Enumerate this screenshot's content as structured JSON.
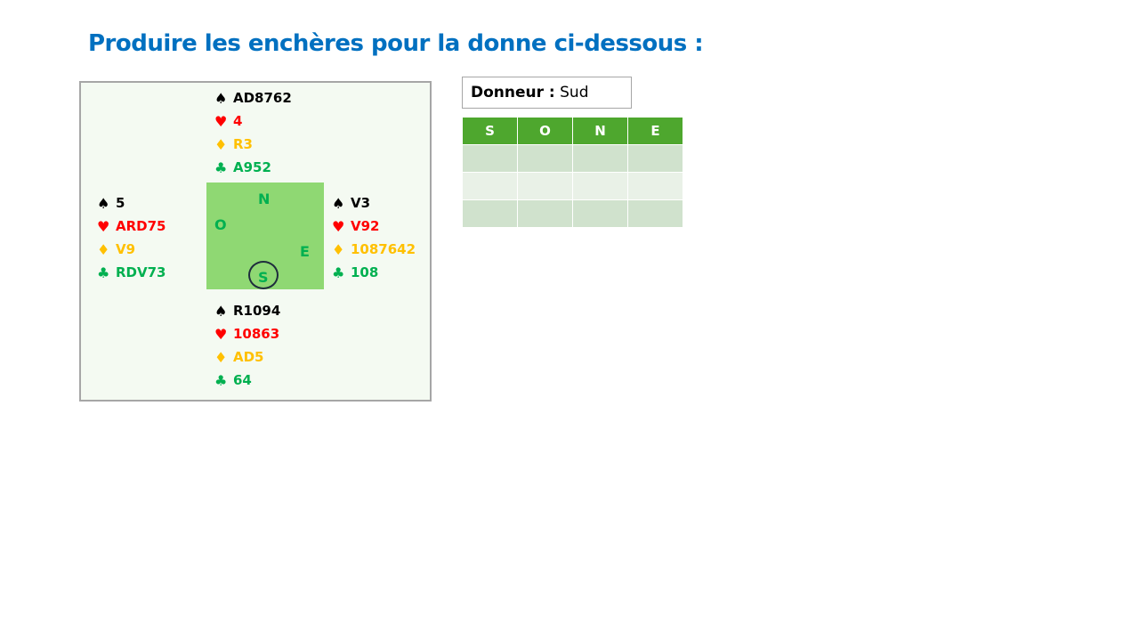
{
  "title": "Produire les enchères pour la donne ci-dessous :",
  "suit_colors": {
    "spade": "#000000",
    "heart": "#ff0000",
    "diamond": "#ffc000",
    "club": "#00b050"
  },
  "suit_symbols": {
    "spade": "♠",
    "heart": "♥",
    "diamond": "♦",
    "club": "♣"
  },
  "hands": {
    "north": {
      "spades": "AD8762",
      "hearts": "4",
      "diamonds": "R3",
      "clubs": "A952"
    },
    "west": {
      "spades": "5",
      "hearts": "ARD75",
      "diamonds": "V9",
      "clubs": "RDV73"
    },
    "east": {
      "spades": "V3",
      "hearts": "V92",
      "diamonds": "1087642",
      "clubs": "108"
    },
    "south": {
      "spades": "R1094",
      "hearts": "10863",
      "diamonds": "AD5",
      "clubs": "64"
    }
  },
  "compass": {
    "north": "N",
    "west": "O",
    "east": "E",
    "south": "S"
  },
  "dealer": {
    "label": "Donneur :",
    "value": "Sud"
  },
  "bidding_table": {
    "headers": [
      "S",
      "O",
      "N",
      "E"
    ],
    "rows": [
      [
        "",
        "",
        "",
        ""
      ],
      [
        "",
        "",
        "",
        ""
      ],
      [
        "",
        "",
        "",
        ""
      ]
    ]
  }
}
